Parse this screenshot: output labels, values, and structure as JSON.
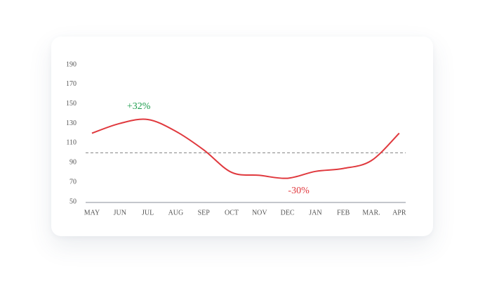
{
  "chart_data": {
    "type": "line",
    "categories": [
      "MAY",
      "JUN",
      "JUL",
      "AUG",
      "SEP",
      "OCT",
      "NOV",
      "DEC",
      "JAN",
      "FEB",
      "MAR.",
      "APR"
    ],
    "series": [
      {
        "color": "#e0393e",
        "values": [
          120,
          130,
          134,
          122,
          103,
          80,
          77,
          74,
          81,
          84,
          92,
          120
        ]
      }
    ],
    "ylim": [
      50,
      190
    ],
    "yticks": [
      50,
      70,
      90,
      110,
      130,
      150,
      170,
      190
    ],
    "reference_line": {
      "value": 100,
      "color": "#999999"
    },
    "annotations": [
      {
        "text": "+32%",
        "color": "#1a9c4b"
      },
      {
        "text": "-30%",
        "color": "#e0393e"
      }
    ],
    "grid": false
  }
}
